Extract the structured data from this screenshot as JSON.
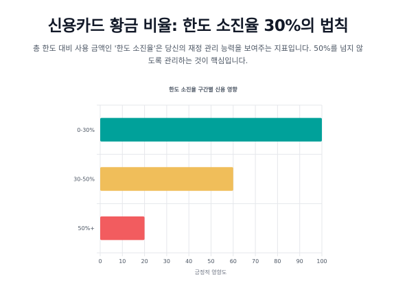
{
  "header": {
    "title": "신용카드 황금 비율: 한도 소진율 30%의 법칙",
    "subtitle": "총 한도 대비 사용 금액인 '한도 소진율'은 당신의 재정 관리 능력을 보여주는 지표입니다. 50%를 넘지 않도록 관리하는 것이 핵심입니다."
  },
  "chart_data": {
    "type": "bar",
    "orientation": "horizontal",
    "title": "한도 소진율 구간별 신용 영향",
    "xlabel": "긍정적 영향도",
    "ylabel": "",
    "categories": [
      "0-30%",
      "30-50%",
      "50%+"
    ],
    "values": [
      100,
      60,
      20
    ],
    "colors": [
      "#00a19a",
      "#f0be5a",
      "#f25c5f"
    ],
    "xlim": [
      0,
      100
    ],
    "xticks": [
      0,
      10,
      20,
      30,
      40,
      50,
      60,
      70,
      80,
      90,
      100
    ],
    "grid": true,
    "legend": "none"
  }
}
